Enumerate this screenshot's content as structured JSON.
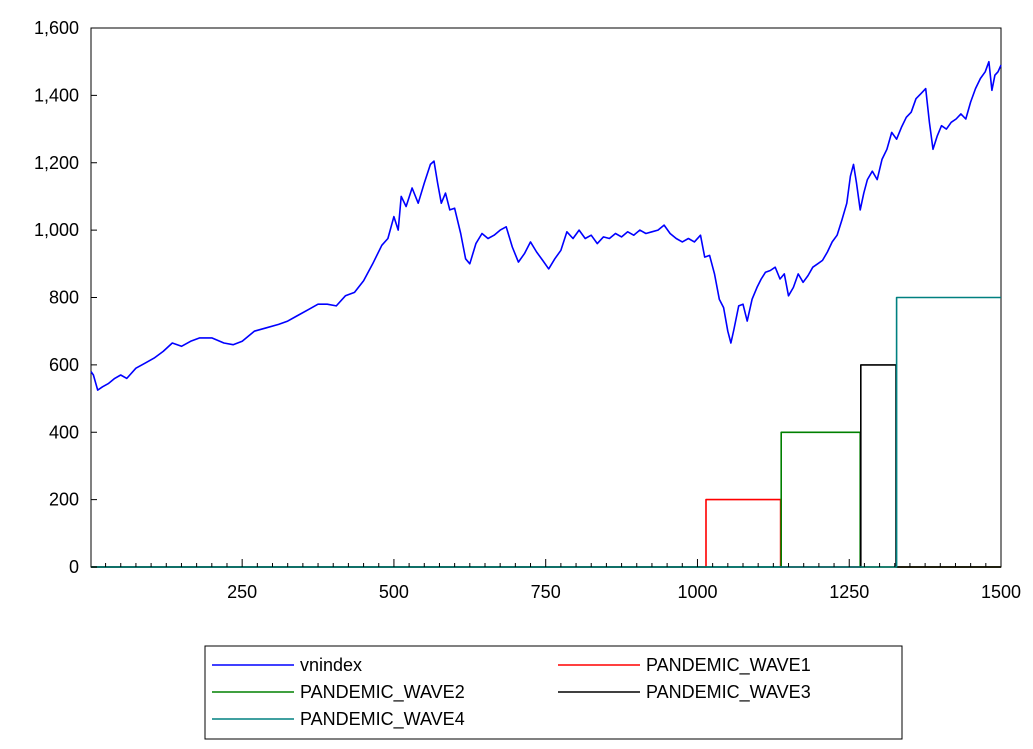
{
  "chart_data": {
    "type": "line",
    "title": "",
    "xlabel": "",
    "ylabel": "",
    "xlim": [
      1,
      1500
    ],
    "ylim": [
      0,
      1600
    ],
    "x_ticks": [
      250,
      500,
      750,
      1000,
      1250,
      1500
    ],
    "x_tick_labels": [
      "250",
      "500",
      "750",
      "1000",
      "1250",
      "1500"
    ],
    "y_ticks": [
      0,
      200,
      400,
      600,
      800,
      1000,
      1200,
      1400,
      1600
    ],
    "y_tick_labels": [
      "0",
      "200",
      "400",
      "600",
      "800",
      "1,000",
      "1,200",
      "1,400",
      "1,600"
    ],
    "grid": false,
    "legend_position": "bottom-center",
    "series": [
      {
        "name": "vnindex",
        "color": "#0000ff",
        "points": [
          [
            1,
            580
          ],
          [
            5,
            570
          ],
          [
            12,
            525
          ],
          [
            20,
            535
          ],
          [
            30,
            545
          ],
          [
            40,
            560
          ],
          [
            50,
            570
          ],
          [
            60,
            560
          ],
          [
            75,
            590
          ],
          [
            90,
            605
          ],
          [
            105,
            620
          ],
          [
            120,
            640
          ],
          [
            135,
            665
          ],
          [
            150,
            655
          ],
          [
            165,
            670
          ],
          [
            180,
            680
          ],
          [
            200,
            680
          ],
          [
            220,
            665
          ],
          [
            235,
            660
          ],
          [
            250,
            670
          ],
          [
            270,
            700
          ],
          [
            290,
            710
          ],
          [
            310,
            720
          ],
          [
            325,
            730
          ],
          [
            340,
            745
          ],
          [
            360,
            765
          ],
          [
            375,
            780
          ],
          [
            390,
            780
          ],
          [
            405,
            775
          ],
          [
            420,
            805
          ],
          [
            435,
            815
          ],
          [
            450,
            850
          ],
          [
            465,
            900
          ],
          [
            480,
            955
          ],
          [
            490,
            975
          ],
          [
            500,
            1040
          ],
          [
            507,
            1000
          ],
          [
            512,
            1100
          ],
          [
            520,
            1070
          ],
          [
            530,
            1125
          ],
          [
            540,
            1080
          ],
          [
            550,
            1140
          ],
          [
            560,
            1195
          ],
          [
            566,
            1205
          ],
          [
            572,
            1140
          ],
          [
            578,
            1080
          ],
          [
            585,
            1110
          ],
          [
            592,
            1060
          ],
          [
            600,
            1065
          ],
          [
            610,
            990
          ],
          [
            618,
            915
          ],
          [
            625,
            900
          ],
          [
            635,
            960
          ],
          [
            645,
            990
          ],
          [
            655,
            975
          ],
          [
            665,
            985
          ],
          [
            675,
            1000
          ],
          [
            685,
            1010
          ],
          [
            695,
            950
          ],
          [
            705,
            905
          ],
          [
            715,
            930
          ],
          [
            725,
            965
          ],
          [
            735,
            935
          ],
          [
            745,
            910
          ],
          [
            755,
            885
          ],
          [
            765,
            915
          ],
          [
            775,
            940
          ],
          [
            785,
            995
          ],
          [
            795,
            975
          ],
          [
            805,
            1000
          ],
          [
            815,
            975
          ],
          [
            825,
            985
          ],
          [
            835,
            960
          ],
          [
            845,
            980
          ],
          [
            855,
            975
          ],
          [
            865,
            990
          ],
          [
            875,
            980
          ],
          [
            885,
            995
          ],
          [
            895,
            985
          ],
          [
            905,
            1000
          ],
          [
            915,
            990
          ],
          [
            925,
            995
          ],
          [
            935,
            1000
          ],
          [
            945,
            1015
          ],
          [
            955,
            990
          ],
          [
            965,
            975
          ],
          [
            975,
            965
          ],
          [
            985,
            975
          ],
          [
            995,
            965
          ],
          [
            1005,
            985
          ],
          [
            1012,
            920
          ],
          [
            1020,
            925
          ],
          [
            1028,
            870
          ],
          [
            1036,
            795
          ],
          [
            1043,
            770
          ],
          [
            1050,
            700
          ],
          [
            1055,
            665
          ],
          [
            1060,
            705
          ],
          [
            1068,
            775
          ],
          [
            1075,
            780
          ],
          [
            1082,
            730
          ],
          [
            1090,
            795
          ],
          [
            1098,
            830
          ],
          [
            1105,
            855
          ],
          [
            1112,
            875
          ],
          [
            1120,
            880
          ],
          [
            1128,
            890
          ],
          [
            1136,
            855
          ],
          [
            1143,
            870
          ],
          [
            1150,
            805
          ],
          [
            1158,
            830
          ],
          [
            1166,
            870
          ],
          [
            1174,
            845
          ],
          [
            1182,
            865
          ],
          [
            1190,
            890
          ],
          [
            1198,
            900
          ],
          [
            1206,
            910
          ],
          [
            1214,
            935
          ],
          [
            1222,
            965
          ],
          [
            1230,
            985
          ],
          [
            1238,
            1030
          ],
          [
            1246,
            1080
          ],
          [
            1252,
            1160
          ],
          [
            1257,
            1195
          ],
          [
            1262,
            1140
          ],
          [
            1268,
            1060
          ],
          [
            1274,
            1110
          ],
          [
            1280,
            1150
          ],
          [
            1288,
            1175
          ],
          [
            1296,
            1150
          ],
          [
            1304,
            1210
          ],
          [
            1312,
            1240
          ],
          [
            1320,
            1290
          ],
          [
            1328,
            1270
          ],
          [
            1336,
            1305
          ],
          [
            1344,
            1335
          ],
          [
            1352,
            1350
          ],
          [
            1360,
            1390
          ],
          [
            1368,
            1405
          ],
          [
            1376,
            1420
          ],
          [
            1382,
            1320
          ],
          [
            1388,
            1240
          ],
          [
            1395,
            1280
          ],
          [
            1402,
            1310
          ],
          [
            1410,
            1300
          ],
          [
            1418,
            1320
          ],
          [
            1426,
            1330
          ],
          [
            1434,
            1345
          ],
          [
            1442,
            1330
          ],
          [
            1450,
            1380
          ],
          [
            1458,
            1420
          ],
          [
            1466,
            1450
          ],
          [
            1474,
            1470
          ],
          [
            1480,
            1500
          ],
          [
            1485,
            1415
          ],
          [
            1490,
            1460
          ],
          [
            1495,
            1470
          ],
          [
            1500,
            1490
          ]
        ]
      },
      {
        "name": "PANDEMIC_WAVE1",
        "color": "#ff0000",
        "points": [
          [
            1,
            0
          ],
          [
            1014,
            0
          ],
          [
            1014,
            200
          ],
          [
            1137,
            200
          ],
          [
            1137,
            0
          ],
          [
            1500,
            0
          ]
        ]
      },
      {
        "name": "PANDEMIC_WAVE2",
        "color": "#008000",
        "points": [
          [
            1,
            0
          ],
          [
            1138,
            0
          ],
          [
            1138,
            400
          ],
          [
            1268,
            400
          ],
          [
            1268,
            0
          ],
          [
            1500,
            0
          ]
        ]
      },
      {
        "name": "PANDEMIC_WAVE3",
        "color": "#000000",
        "points": [
          [
            1,
            0
          ],
          [
            1269,
            0
          ],
          [
            1269,
            600
          ],
          [
            1327,
            600
          ],
          [
            1327,
            0
          ],
          [
            1500,
            0
          ]
        ]
      },
      {
        "name": "PANDEMIC_WAVE4",
        "color": "#008080",
        "points": [
          [
            1,
            0
          ],
          [
            1328,
            0
          ],
          [
            1328,
            800
          ],
          [
            1500,
            800
          ]
        ]
      }
    ]
  }
}
